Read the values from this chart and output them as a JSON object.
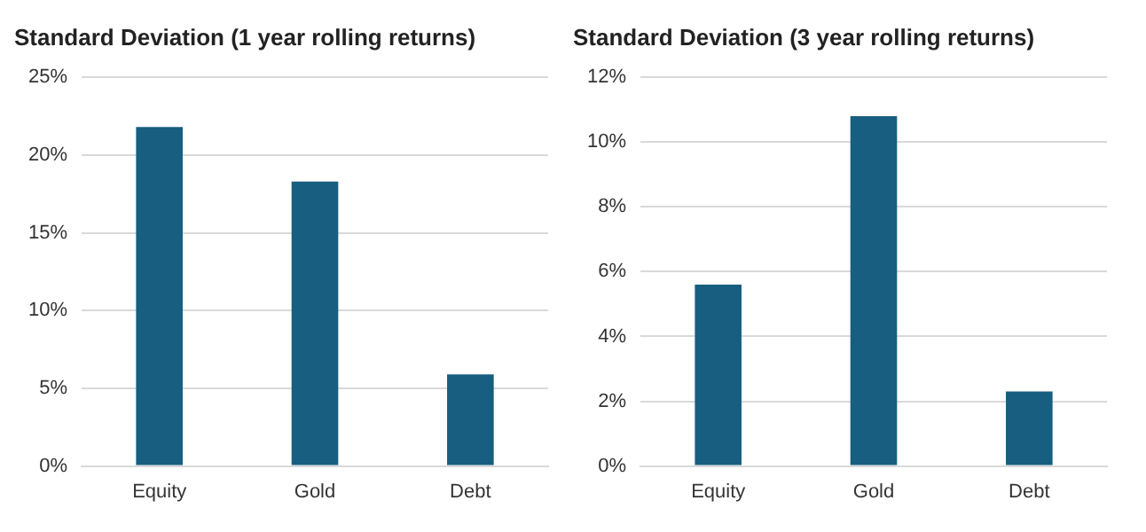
{
  "chart_data": [
    {
      "type": "bar",
      "title": "Standard Deviation (1 year rolling returns)",
      "categories": [
        "Equity",
        "Gold",
        "Debt"
      ],
      "values": [
        21.8,
        18.3,
        5.9
      ],
      "color": "#175e80",
      "ylim": [
        0,
        25
      ],
      "yticks": [
        {
          "value": 0,
          "label": "0%"
        },
        {
          "value": 5,
          "label": "5%"
        },
        {
          "value": 10,
          "label": "10%"
        },
        {
          "value": 15,
          "label": "15%"
        },
        {
          "value": 20,
          "label": "20%"
        },
        {
          "value": 25,
          "label": "25%"
        }
      ],
      "grid": "y"
    },
    {
      "type": "bar",
      "title": "Standard Deviation (3 year rolling returns)",
      "categories": [
        "Equity",
        "Gold",
        "Debt"
      ],
      "values": [
        5.6,
        10.8,
        2.3
      ],
      "color": "#175e80",
      "ylim": [
        0,
        12
      ],
      "yticks": [
        {
          "value": 0,
          "label": "0%"
        },
        {
          "value": 2,
          "label": "2%"
        },
        {
          "value": 4,
          "label": "4%"
        },
        {
          "value": 6,
          "label": "6%"
        },
        {
          "value": 8,
          "label": "8%"
        },
        {
          "value": 10,
          "label": "10%"
        },
        {
          "value": 12,
          "label": "12%"
        }
      ],
      "grid": "y"
    }
  ]
}
